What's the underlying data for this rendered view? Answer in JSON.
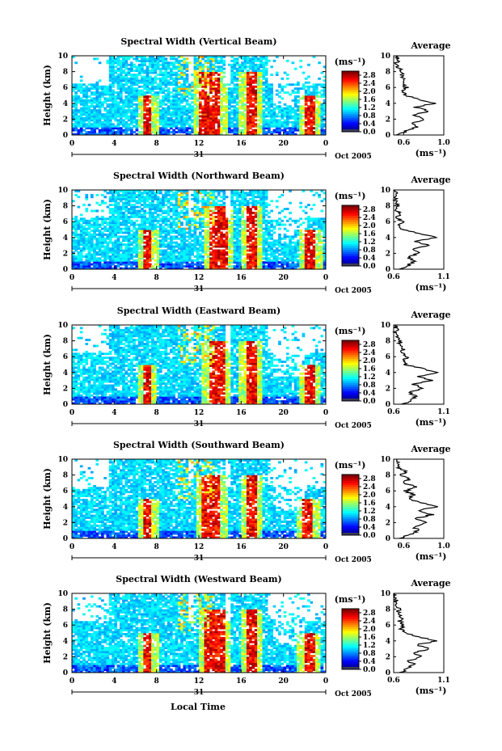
{
  "figure": {
    "xlabel": "Local Time",
    "day_label": "31",
    "month_label": "Oct 2005",
    "colorbar_unit": "(ms⁻¹)",
    "avg_title": "Average",
    "avg_xunit": "(ms⁻¹)",
    "ylabel": "Height (km)"
  },
  "chart_data": [
    {
      "type": "heatmap",
      "title": "Spectral Width (Vertical Beam)",
      "xlim": [
        0,
        24
      ],
      "ylim": [
        0,
        10
      ],
      "xticks": [
        "0",
        "4",
        "8",
        "12",
        "16",
        "20",
        "0"
      ],
      "yticks": [
        "0",
        "2",
        "4",
        "6",
        "8",
        "10"
      ],
      "colorbar_ticks": [
        "0.0",
        "0.4",
        "0.8",
        "1.2",
        "1.6",
        "2.0",
        "2.4",
        "2.8"
      ],
      "colorbar_range": [
        0,
        3.0
      ],
      "high_width_columns_hours": [
        7.2,
        12.6,
        13.6,
        16.9,
        22.5
      ],
      "average_profile": {
        "xlim": [
          0.5,
          1.0
        ],
        "xticks": [
          "0.6",
          "1.0"
        ],
        "height_km": [
          0,
          0.5,
          1,
          1.5,
          2,
          2.5,
          3,
          3.5,
          4,
          4.5,
          5,
          5.5,
          6,
          6.5,
          7,
          7.5,
          8,
          8.5,
          9,
          9.5,
          10
        ],
        "width": [
          0.55,
          0.62,
          0.72,
          0.68,
          0.8,
          0.7,
          0.85,
          0.72,
          0.9,
          0.75,
          0.62,
          0.6,
          0.63,
          0.58,
          0.62,
          0.58,
          0.58,
          0.55,
          0.53,
          0.55,
          0.52
        ]
      }
    },
    {
      "type": "heatmap",
      "title": "Spectral Width (Northward Beam)",
      "xlim": [
        0,
        24
      ],
      "ylim": [
        0,
        10
      ],
      "xticks": [
        "0",
        "4",
        "8",
        "12",
        "16",
        "20",
        "0"
      ],
      "yticks": [
        "0",
        "2",
        "4",
        "6",
        "8",
        "10"
      ],
      "colorbar_ticks": [
        "0.0",
        "0.4",
        "0.8",
        "1.2",
        "1.6",
        "2.0",
        "2.4",
        "2.8"
      ],
      "colorbar_range": [
        0,
        3.0
      ],
      "high_width_columns_hours": [
        7.2,
        13.5,
        14.2,
        17.0,
        22.6
      ],
      "average_profile": {
        "xlim": [
          0.6,
          1.1
        ],
        "xticks": [
          "0.6",
          "1.1"
        ],
        "height_km": [
          0,
          0.5,
          1,
          1.5,
          2,
          2.5,
          3,
          3.5,
          4,
          4.5,
          5,
          5.5,
          6,
          6.5,
          7,
          7.5,
          8,
          8.5,
          9,
          9.5,
          10
        ],
        "width": [
          0.68,
          0.75,
          0.8,
          0.74,
          0.85,
          0.78,
          0.95,
          0.82,
          1.02,
          0.85,
          0.7,
          0.66,
          0.68,
          0.64,
          0.66,
          0.63,
          0.64,
          0.62,
          0.61,
          0.62,
          0.6
        ]
      }
    },
    {
      "type": "heatmap",
      "title": "Spectral Width (Eastward Beam)",
      "xlim": [
        0,
        24
      ],
      "ylim": [
        0,
        10
      ],
      "xticks": [
        "0",
        "4",
        "8",
        "12",
        "16",
        "20",
        "0"
      ],
      "yticks": [
        "0",
        "2",
        "4",
        "6",
        "8",
        "10"
      ],
      "colorbar_ticks": [
        "0.0",
        "0.4",
        "0.8",
        "1.2",
        "1.6",
        "2.0",
        "2.4",
        "2.8"
      ],
      "colorbar_range": [
        0,
        3.0
      ],
      "high_width_columns_hours": [
        7.1,
        13.4,
        14.0,
        16.9,
        22.5
      ],
      "average_profile": {
        "xlim": [
          0.6,
          1.1
        ],
        "xticks": [
          "0.6",
          "1.1"
        ],
        "height_km": [
          0,
          0.5,
          1,
          1.5,
          2,
          2.5,
          3,
          3.5,
          4,
          4.5,
          5,
          5.5,
          6,
          6.5,
          7,
          7.5,
          8,
          8.5,
          9,
          9.5,
          10
        ],
        "width": [
          0.7,
          0.76,
          0.82,
          0.76,
          0.9,
          0.8,
          0.98,
          0.84,
          1.05,
          0.88,
          0.72,
          0.7,
          0.74,
          0.68,
          0.7,
          0.66,
          0.67,
          0.64,
          0.62,
          0.63,
          0.61
        ]
      }
    },
    {
      "type": "heatmap",
      "title": "Spectral Width (Southward Beam)",
      "xlim": [
        0,
        24
      ],
      "ylim": [
        0,
        10
      ],
      "xticks": [
        "0",
        "4",
        "8",
        "12",
        "16",
        "20",
        "0"
      ],
      "yticks": [
        "0",
        "2",
        "4",
        "6",
        "8",
        "10"
      ],
      "colorbar_ticks": [
        "0.0",
        "0.4",
        "0.8",
        "1.2",
        "1.6",
        "2.0",
        "2.4",
        "2.8"
      ],
      "colorbar_range": [
        0,
        3.0
      ],
      "high_width_columns_hours": [
        7.2,
        12.8,
        13.6,
        17.0,
        22.3
      ],
      "average_profile": {
        "xlim": [
          0.5,
          1.0
        ],
        "xticks": [
          "0.6",
          "1.0"
        ],
        "height_km": [
          0,
          0.5,
          1,
          1.5,
          2,
          2.5,
          3,
          3.5,
          4,
          4.5,
          5,
          5.5,
          6,
          6.5,
          7,
          7.5,
          8,
          8.5,
          9,
          9.5,
          10
        ],
        "width": [
          0.58,
          0.66,
          0.74,
          0.7,
          0.84,
          0.72,
          0.88,
          0.75,
          0.92,
          0.78,
          0.64,
          0.7,
          0.62,
          0.72,
          0.6,
          0.66,
          0.58,
          0.62,
          0.54,
          0.56,
          0.53
        ]
      }
    },
    {
      "type": "heatmap",
      "title": "Spectral Width (Westward Beam)",
      "xlim": [
        0,
        24
      ],
      "ylim": [
        0,
        10
      ],
      "xticks": [
        "0",
        "4",
        "8",
        "12",
        "16",
        "20",
        "0"
      ],
      "yticks": [
        "0",
        "2",
        "4",
        "6",
        "8",
        "10"
      ],
      "colorbar_ticks": [
        "0.0",
        "0.4",
        "0.8",
        "1.2",
        "1.6",
        "2.0",
        "2.4",
        "2.8"
      ],
      "colorbar_range": [
        0,
        3.0
      ],
      "high_width_columns_hours": [
        7.2,
        13.0,
        14.0,
        17.0,
        22.4
      ],
      "average_profile": {
        "xlim": [
          0.6,
          1.1
        ],
        "xticks": [
          "0.6",
          "1.1"
        ],
        "height_km": [
          0,
          0.5,
          1,
          1.5,
          2,
          2.5,
          3,
          3.5,
          4,
          4.5,
          5,
          5.5,
          6,
          6.5,
          7,
          7.5,
          8,
          8.5,
          9,
          9.5,
          10
        ],
        "width": [
          0.68,
          0.74,
          0.8,
          0.75,
          0.88,
          0.79,
          0.96,
          0.83,
          1.03,
          0.86,
          0.72,
          0.68,
          0.7,
          0.66,
          0.68,
          0.65,
          0.65,
          0.63,
          0.62,
          0.62,
          0.61
        ]
      }
    }
  ]
}
